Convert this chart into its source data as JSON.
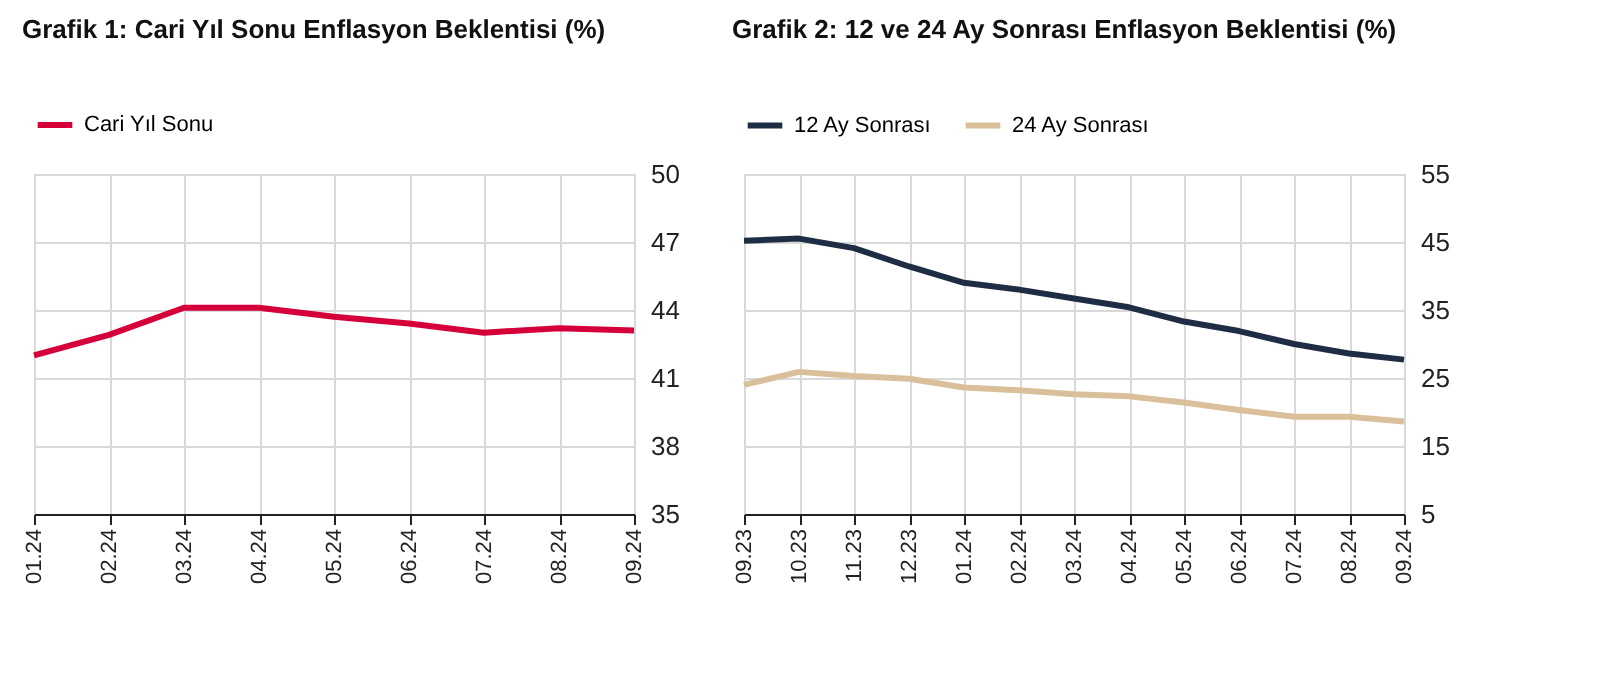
{
  "chart_data": [
    {
      "type": "line",
      "title": "Grafik 1: Cari Yıl Sonu Enflasyon Beklentisi (%)",
      "categories": [
        "01.24",
        "02.24",
        "03.24",
        "04.24",
        "05.24",
        "06.24",
        "07.24",
        "08.24",
        "09.24"
      ],
      "series": [
        {
          "name": "Cari Yıl Sonu",
          "color": "#d5003a",
          "values": [
            42.0,
            42.9,
            44.1,
            44.1,
            43.7,
            43.4,
            43.0,
            43.2,
            43.1
          ]
        }
      ],
      "ylim": [
        35,
        50
      ],
      "yticks": [
        35,
        38,
        41,
        44,
        47,
        50
      ],
      "grid": true,
      "legend": "top",
      "marker": "none",
      "line_style": "solid"
    },
    {
      "type": "line",
      "title": "Grafik 2: 12 ve 24 Ay Sonrası Enflasyon Beklentisi (%)",
      "categories": [
        "09.23",
        "10.23",
        "11.23",
        "12.23",
        "01.24",
        "02.24",
        "03.24",
        "04.24",
        "05.24",
        "06.24",
        "07.24",
        "08.24",
        "09.24"
      ],
      "series": [
        {
          "name": "12 Ay Sonrası",
          "color": "#1f2d44",
          "values": [
            45.2,
            45.5,
            44.1,
            41.4,
            39.0,
            38.0,
            36.7,
            35.4,
            33.3,
            31.9,
            30.0,
            28.6,
            27.7
          ]
        },
        {
          "name": "24 Ay Sonrası",
          "color": "#d9c09a",
          "values": [
            24.0,
            25.9,
            25.3,
            24.9,
            23.6,
            23.2,
            22.6,
            22.3,
            21.4,
            20.3,
            19.3,
            19.3,
            18.6
          ]
        }
      ],
      "ylim": [
        5,
        55
      ],
      "yticks": [
        5,
        15,
        25,
        35,
        45,
        55
      ],
      "grid": true,
      "legend": "top",
      "marker": "none",
      "line_style": "solid"
    }
  ]
}
